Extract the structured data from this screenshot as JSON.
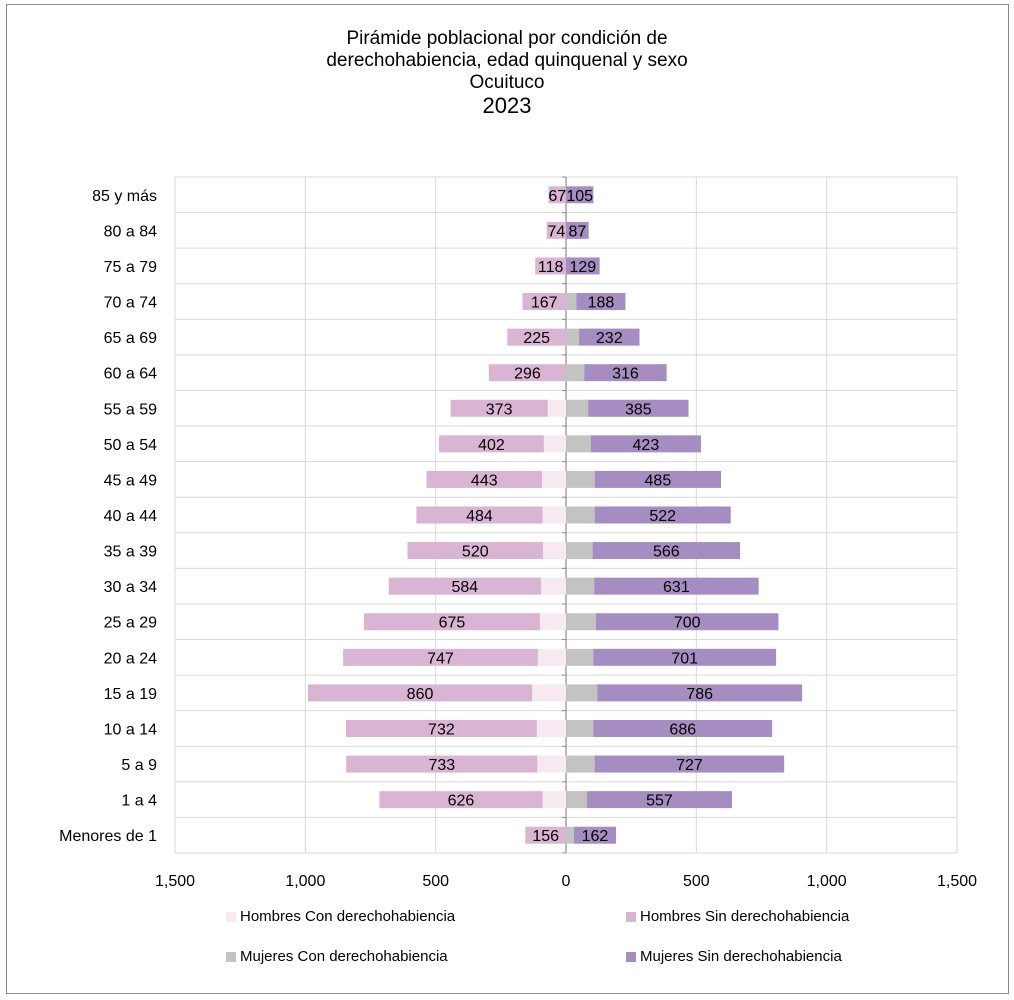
{
  "chart_data": {
    "type": "bar",
    "title_lines": [
      "Pirámide poblacional por condición de",
      "derechohabiencia, edad quinquenal y sexo",
      "Ocuituco",
      "2023"
    ],
    "categories": [
      "85 y más",
      "80 a 84",
      "75 a 79",
      "70 a 74",
      "65 a 69",
      "60 a 64",
      "55 a 59",
      "50 a 54",
      "45 a 49",
      "40 a 44",
      "35 a 39",
      "30 a 34",
      "25 a 29",
      "20 a 24",
      "15 a 19",
      "10 a 14",
      "5 a 9",
      "1 a 4",
      "Menores de 1"
    ],
    "series": [
      {
        "name": "Hombres Con derechohabiencia",
        "color": "#f6e9f2",
        "values": [
          0,
          0,
          0,
          0,
          0,
          0,
          70,
          85,
          92,
          90,
          88,
          96,
          100,
          108,
          130,
          112,
          110,
          90,
          0
        ]
      },
      {
        "name": "Hombres Sin derechohabiencia",
        "color": "#dab4d3",
        "values": [
          67,
          74,
          118,
          167,
          225,
          296,
          373,
          402,
          443,
          484,
          520,
          584,
          675,
          747,
          860,
          732,
          733,
          626,
          156
        ]
      },
      {
        "name": "Mujeres Con derechohabiencia",
        "color": "#c3c3c3",
        "values": [
          0,
          0,
          0,
          40,
          50,
          70,
          85,
          95,
          110,
          110,
          102,
          108,
          115,
          105,
          120,
          105,
          110,
          80,
          30
        ]
      },
      {
        "name": "Mujeres Sin derechohabiencia",
        "color": "#a68dc1",
        "values": [
          105,
          87,
          129,
          188,
          232,
          316,
          385,
          423,
          485,
          522,
          566,
          631,
          700,
          701,
          786,
          686,
          727,
          557,
          162
        ]
      }
    ],
    "xaxis_ticks": [
      "1,500",
      "1,000",
      "500",
      "0",
      "500",
      "1,000",
      "1,500"
    ],
    "xlim": [
      -1500,
      1500
    ],
    "grid": true,
    "legend_position": "bottom"
  }
}
